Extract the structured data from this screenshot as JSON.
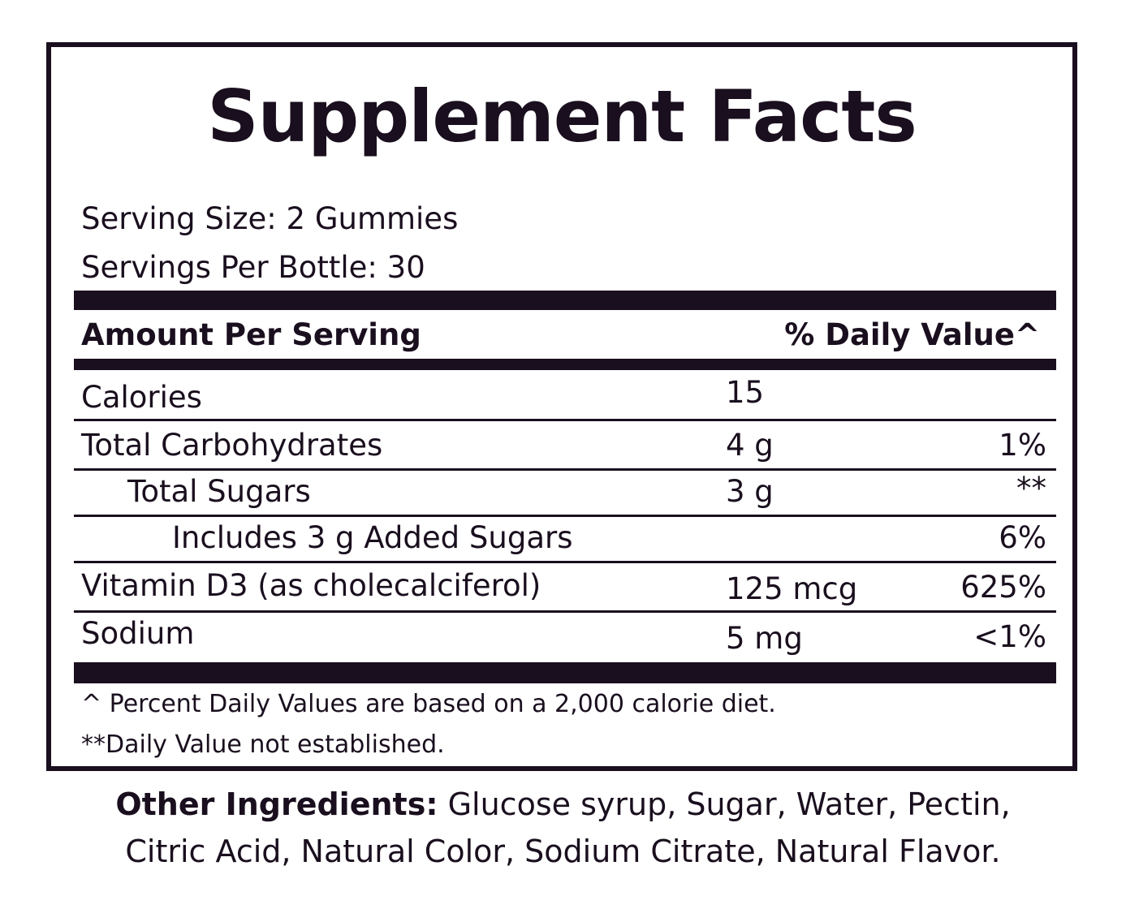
{
  "title": "Supplement Facts",
  "serving_size": "Serving Size: 2 Gummies",
  "servings_per_container": "Servings Per Bottle: 30",
  "header": {
    "amount_label": "Amount Per Serving",
    "dv_label": "% Daily Value^"
  },
  "rows": [
    {
      "name": "Calories",
      "amount": "15",
      "dv": ""
    },
    {
      "name": "Total Carbohydrates",
      "amount": "4 g",
      "dv": "1%"
    },
    {
      "name": "Total Sugars",
      "amount": "3 g",
      "dv": "**"
    },
    {
      "name": "Includes 3 g Added Sugars",
      "amount": "",
      "dv": "6%"
    },
    {
      "name": "Vitamin D3 (as cholecalciferol)",
      "amount": "125 mcg",
      "dv": "625%"
    },
    {
      "name": "Sodium",
      "amount": "5 mg",
      "dv": "<1%"
    }
  ],
  "footnotes": [
    "^ Percent Daily Values are based on a 2,000 calorie diet.",
    "**Daily Value not established."
  ],
  "other_ingredients": {
    "label": "Other Ingredients:",
    "line1": " Glucose syrup, Sugar, Water, Pectin,",
    "line2": "Citric Acid, Natural Color, Sodium Citrate, Natural Flavor."
  },
  "colors": {
    "ink": "#1a0f1e",
    "background": "#ffffff"
  }
}
